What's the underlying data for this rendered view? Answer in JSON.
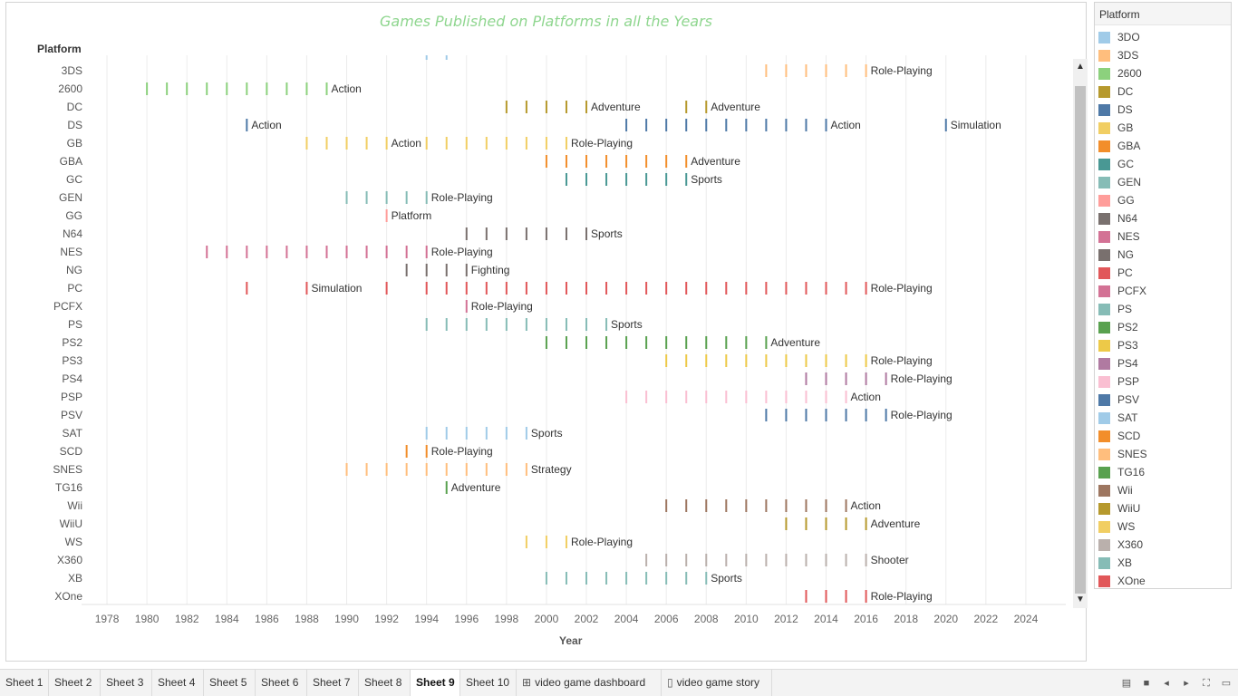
{
  "chart_data": {
    "type": "scatter",
    "title": "Games Published on Platforms in all the Years",
    "row_header": "Platform",
    "xlabel": "Year",
    "x_ticks": [
      "1978",
      "1980",
      "1982",
      "1984",
      "1986",
      "1988",
      "1990",
      "1992",
      "1994",
      "1996",
      "1998",
      "2000",
      "2002",
      "2004",
      "2006",
      "2008",
      "2010",
      "2012",
      "2014",
      "2016",
      "2018",
      "2020",
      "2022",
      "2024"
    ],
    "xlim": [
      1977,
      2026
    ],
    "partial_rows": [
      {
        "platform": "3DO",
        "color": "#a0cbe8",
        "years": [
          1994,
          1995
        ]
      }
    ],
    "series": [
      {
        "platform": "3DS",
        "color": "#ffbe7d",
        "years": [
          2011,
          2012,
          2013,
          2014,
          2015,
          2016
        ],
        "label": "Role-Playing"
      },
      {
        "platform": "2600",
        "color": "#8cd17d",
        "years": [
          1980,
          1981,
          1982,
          1983,
          1984,
          1985,
          1986,
          1987,
          1988,
          1989
        ],
        "label": "Action"
      },
      {
        "platform": "DC",
        "color": "#b6992d",
        "years": [
          1998,
          1999,
          2000,
          2001,
          2002,
          2007,
          2008
        ],
        "labels": [
          {
            "year": 2002,
            "text": "Adventure"
          },
          {
            "year": 2008,
            "text": "Adventure"
          }
        ]
      },
      {
        "platform": "DS",
        "color": "#4e79a7",
        "years": [
          1985,
          2004,
          2005,
          2006,
          2007,
          2008,
          2009,
          2010,
          2011,
          2012,
          2013,
          2014,
          2020
        ],
        "labels": [
          {
            "year": 1985,
            "text": "Action"
          },
          {
            "year": 2014,
            "text": "Action"
          },
          {
            "year": 2020,
            "text": "Simulation"
          }
        ]
      },
      {
        "platform": "GB",
        "color": "#f1ce63",
        "years": [
          1988,
          1989,
          1990,
          1991,
          1992,
          1994,
          1995,
          1996,
          1997,
          1998,
          1999,
          2000,
          2001
        ],
        "labels": [
          {
            "year": 1992,
            "text": "Action"
          },
          {
            "year": 2001,
            "text": "Role-Playing"
          }
        ]
      },
      {
        "platform": "GBA",
        "color": "#f28e2b",
        "years": [
          2000,
          2001,
          2002,
          2003,
          2004,
          2005,
          2006,
          2007
        ],
        "label": "Adventure"
      },
      {
        "platform": "GC",
        "color": "#499894",
        "years": [
          2001,
          2002,
          2003,
          2004,
          2005,
          2006,
          2007
        ],
        "label": "Sports"
      },
      {
        "platform": "GEN",
        "color": "#86bcb6",
        "years": [
          1990,
          1991,
          1992,
          1993,
          1994
        ],
        "label": "Role-Playing"
      },
      {
        "platform": "GG",
        "color": "#ff9d9a",
        "years": [
          1992
        ],
        "label": "Platform"
      },
      {
        "platform": "N64",
        "color": "#79706e",
        "years": [
          1996,
          1997,
          1998,
          1999,
          2000,
          2001,
          2002
        ],
        "label": "Sports"
      },
      {
        "platform": "NES",
        "color": "#d37295",
        "years": [
          1983,
          1984,
          1985,
          1986,
          1987,
          1988,
          1989,
          1990,
          1991,
          1992,
          1993,
          1994
        ],
        "label": "Role-Playing"
      },
      {
        "platform": "NG",
        "color": "#79706e",
        "years": [
          1993,
          1994,
          1995,
          1996
        ],
        "label": "Fighting"
      },
      {
        "platform": "PC",
        "color": "#e15759",
        "years": [
          1985,
          1988,
          1992,
          1994,
          1995,
          1996,
          1997,
          1998,
          1999,
          2000,
          2001,
          2002,
          2003,
          2004,
          2005,
          2006,
          2007,
          2008,
          2009,
          2010,
          2011,
          2012,
          2013,
          2014,
          2015,
          2016
        ],
        "labels": [
          {
            "year": 1988,
            "text": "Simulation"
          },
          {
            "year": 2016,
            "text": "Role-Playing"
          }
        ]
      },
      {
        "platform": "PCFX",
        "color": "#d37295",
        "years": [
          1996
        ],
        "label": "Role-Playing"
      },
      {
        "platform": "PS",
        "color": "#86bcb6",
        "years": [
          1994,
          1995,
          1996,
          1997,
          1998,
          1999,
          2000,
          2001,
          2002,
          2003
        ],
        "label": "Sports"
      },
      {
        "platform": "PS2",
        "color": "#59a14f",
        "years": [
          2000,
          2001,
          2002,
          2003,
          2004,
          2005,
          2006,
          2007,
          2008,
          2009,
          2010,
          2011
        ],
        "label": "Adventure"
      },
      {
        "platform": "PS3",
        "color": "#edc948",
        "years": [
          2006,
          2007,
          2008,
          2009,
          2010,
          2011,
          2012,
          2013,
          2014,
          2015,
          2016
        ],
        "label": "Role-Playing"
      },
      {
        "platform": "PS4",
        "color": "#b07aa1",
        "years": [
          2013,
          2014,
          2015,
          2016,
          2017
        ],
        "label": "Role-Playing"
      },
      {
        "platform": "PSP",
        "color": "#fabfd2",
        "years": [
          2004,
          2005,
          2006,
          2007,
          2008,
          2009,
          2010,
          2011,
          2012,
          2013,
          2014,
          2015
        ],
        "label": "Action"
      },
      {
        "platform": "PSV",
        "color": "#4e79a7",
        "years": [
          2011,
          2012,
          2013,
          2014,
          2015,
          2016,
          2017
        ],
        "label": "Role-Playing"
      },
      {
        "platform": "SAT",
        "color": "#a0cbe8",
        "years": [
          1994,
          1995,
          1996,
          1997,
          1998,
          1999
        ],
        "label": "Sports"
      },
      {
        "platform": "SCD",
        "color": "#f28e2b",
        "years": [
          1993,
          1994
        ],
        "label": "Role-Playing"
      },
      {
        "platform": "SNES",
        "color": "#ffbe7d",
        "years": [
          1990,
          1991,
          1992,
          1993,
          1994,
          1995,
          1996,
          1997,
          1998,
          1999
        ],
        "label": "Strategy"
      },
      {
        "platform": "TG16",
        "color": "#59a14f",
        "years": [
          1995
        ],
        "label": "Adventure"
      },
      {
        "platform": "Wii",
        "color": "#9d7660",
        "years": [
          2006,
          2007,
          2008,
          2009,
          2010,
          2011,
          2012,
          2013,
          2014,
          2015
        ],
        "label": "Action"
      },
      {
        "platform": "WiiU",
        "color": "#b6992d",
        "years": [
          2012,
          2013,
          2014,
          2015,
          2016
        ],
        "label": "Adventure"
      },
      {
        "platform": "WS",
        "color": "#f1ce63",
        "years": [
          1999,
          2000,
          2001
        ],
        "label": "Role-Playing"
      },
      {
        "platform": "X360",
        "color": "#bab0ac",
        "years": [
          2005,
          2006,
          2007,
          2008,
          2009,
          2010,
          2011,
          2012,
          2013,
          2014,
          2015,
          2016
        ],
        "label": "Shooter"
      },
      {
        "platform": "XB",
        "color": "#86bcb6",
        "years": [
          2000,
          2001,
          2002,
          2003,
          2004,
          2005,
          2006,
          2007,
          2008
        ],
        "label": "Sports"
      },
      {
        "platform": "XOne",
        "color": "#e15759",
        "years": [
          2013,
          2014,
          2015,
          2016
        ],
        "label": "Role-Playing"
      }
    ]
  },
  "legend": {
    "title": "Platform",
    "items": [
      {
        "label": "3DO",
        "color": "#a0cbe8"
      },
      {
        "label": "3DS",
        "color": "#ffbe7d"
      },
      {
        "label": "2600",
        "color": "#8cd17d"
      },
      {
        "label": "DC",
        "color": "#b6992d"
      },
      {
        "label": "DS",
        "color": "#4e79a7"
      },
      {
        "label": "GB",
        "color": "#f1ce63"
      },
      {
        "label": "GBA",
        "color": "#f28e2b"
      },
      {
        "label": "GC",
        "color": "#499894"
      },
      {
        "label": "GEN",
        "color": "#86bcb6"
      },
      {
        "label": "GG",
        "color": "#ff9d9a"
      },
      {
        "label": "N64",
        "color": "#79706e"
      },
      {
        "label": "NES",
        "color": "#d37295"
      },
      {
        "label": "NG",
        "color": "#79706e"
      },
      {
        "label": "PC",
        "color": "#e15759"
      },
      {
        "label": "PCFX",
        "color": "#d37295"
      },
      {
        "label": "PS",
        "color": "#86bcb6"
      },
      {
        "label": "PS2",
        "color": "#59a14f"
      },
      {
        "label": "PS3",
        "color": "#edc948"
      },
      {
        "label": "PS4",
        "color": "#b07aa1"
      },
      {
        "label": "PSP",
        "color": "#fabfd2"
      },
      {
        "label": "PSV",
        "color": "#4e79a7"
      },
      {
        "label": "SAT",
        "color": "#a0cbe8"
      },
      {
        "label": "SCD",
        "color": "#f28e2b"
      },
      {
        "label": "SNES",
        "color": "#ffbe7d"
      },
      {
        "label": "TG16",
        "color": "#59a14f"
      },
      {
        "label": "Wii",
        "color": "#9d7660"
      },
      {
        "label": "WiiU",
        "color": "#b6992d"
      },
      {
        "label": "WS",
        "color": "#f1ce63"
      },
      {
        "label": "X360",
        "color": "#bab0ac"
      },
      {
        "label": "XB",
        "color": "#86bcb6"
      },
      {
        "label": "XOne",
        "color": "#e15759"
      }
    ]
  },
  "tabs": [
    {
      "label": "Sheet 1",
      "active": false
    },
    {
      "label": "Sheet 2",
      "active": false
    },
    {
      "label": "Sheet 3",
      "active": false
    },
    {
      "label": "Sheet 4",
      "active": false
    },
    {
      "label": "Sheet 5",
      "active": false
    },
    {
      "label": "Sheet 6",
      "active": false
    },
    {
      "label": "Sheet 7",
      "active": false
    },
    {
      "label": "Sheet 8",
      "active": false
    },
    {
      "label": "Sheet 9",
      "active": true
    },
    {
      "label": "Sheet 10",
      "active": false
    },
    {
      "label": "video game dashboard",
      "active": false,
      "icon": "dashboard-icon"
    },
    {
      "label": "video game story",
      "active": false,
      "icon": "story-icon"
    }
  ],
  "controls": [
    {
      "name": "filmstrip-view-icon",
      "glyph": "▤"
    },
    {
      "name": "tabs-view-icon",
      "glyph": "■"
    },
    {
      "name": "prev-sheet-icon",
      "glyph": "◂"
    },
    {
      "name": "next-sheet-icon",
      "glyph": "▸"
    },
    {
      "name": "fullscreen-icon",
      "glyph": "⛶"
    },
    {
      "name": "presentation-icon",
      "glyph": "▭"
    }
  ]
}
